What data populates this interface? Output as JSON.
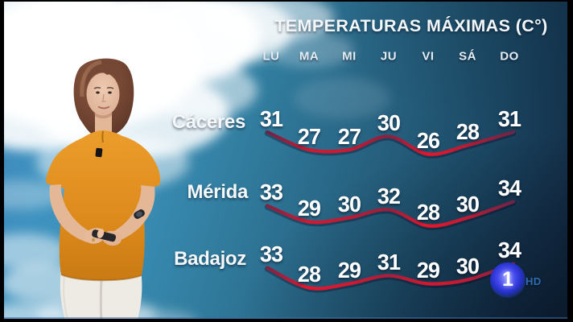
{
  "chart_data": {
    "type": "line",
    "title": "TEMPERATURAS MÁXIMAS (C°)",
    "unit": "C°",
    "categories": [
      "LU",
      "MA",
      "MI",
      "JU",
      "VI",
      "SÁ",
      "DO"
    ],
    "series": [
      {
        "name": "Cáceres",
        "values": [
          31,
          27,
          27,
          30,
          26,
          28,
          31
        ]
      },
      {
        "name": "Mérida",
        "values": [
          33,
          29,
          30,
          32,
          28,
          30,
          34
        ]
      },
      {
        "name": "Badajoz",
        "values": [
          33,
          28,
          29,
          31,
          29,
          30,
          34
        ]
      }
    ],
    "line_color_low": "#e6162c",
    "line_color_high": "#6b2547",
    "text_color": "#ffffff",
    "grid": false,
    "legend_position": "row-labels-left"
  },
  "channel_badge": {
    "number": "1",
    "hd": "HD",
    "circle_color": "#3d43e8",
    "hd_color": "#2e6cb4"
  }
}
